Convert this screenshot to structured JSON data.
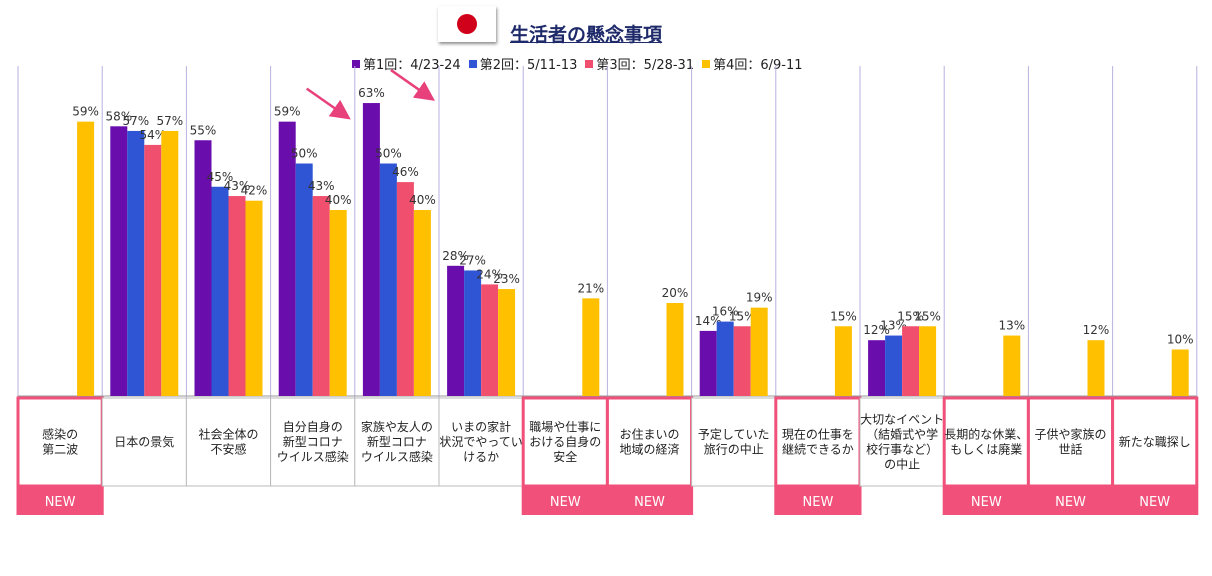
{
  "chart_data": {
    "type": "bar",
    "title": "生活者の懸念事項",
    "ylim": [
      0,
      70
    ],
    "series": [
      {
        "name": "第1回：4/23-24",
        "color": "#6a0dad",
        "values": [
          null,
          58,
          55,
          59,
          63,
          28,
          null,
          null,
          14,
          null,
          12,
          null,
          null,
          null
        ]
      },
      {
        "name": "第2回：5/11-13",
        "color": "#2f55d4",
        "values": [
          null,
          57,
          45,
          50,
          50,
          27,
          null,
          null,
          16,
          null,
          13,
          null,
          null,
          null
        ]
      },
      {
        "name": "第3回：5/28-31",
        "color": "#f0506e",
        "values": [
          null,
          54,
          43,
          43,
          46,
          24,
          null,
          null,
          15,
          null,
          15,
          null,
          null,
          null
        ]
      },
      {
        "name": "第4回：6/9-11",
        "color": "#ffc000",
        "values": [
          59,
          57,
          42,
          40,
          40,
          23,
          21,
          20,
          19,
          15,
          15,
          13,
          12,
          10
        ]
      }
    ],
    "categories": [
      "感染の\n第二波",
      "日本の景気",
      "社会全体の\n不安感",
      "自分自身の\n新型コロナ\nウイルス感染",
      "家族や友人の\n新型コロナ\nウイルス感染",
      "いまの家計\n状況でやってい\nけるか",
      "職場や仕事に\nおける自身の\n安全",
      "お住まいの\n地域の経済",
      "予定していた\n旅行の中止",
      "現在の仕事を\n継続できるか",
      "大切なイベント\n（結婚式や学\n校行事など）\nの中止",
      "長期的な休業、\nもしくは廃業",
      "子供や家族の\n世話",
      "新たな職探し"
    ],
    "is_new": [
      true,
      false,
      false,
      false,
      false,
      false,
      true,
      true,
      false,
      true,
      false,
      true,
      true,
      true
    ],
    "new_label": "NEW",
    "data_label_suffix": "%",
    "decline_arrows": [
      "自分自身の\n新型コロナ\nウイルス感染",
      "家族や友人の\n新型コロナ\nウイルス感染"
    ],
    "grid": "vertical category separators"
  }
}
